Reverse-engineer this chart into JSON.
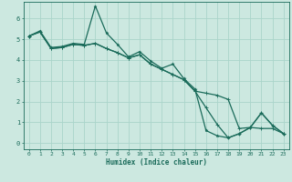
{
  "xlabel": "Humidex (Indice chaleur)",
  "xlim": [
    -0.5,
    23.5
  ],
  "ylim": [
    -0.3,
    6.8
  ],
  "background_color": "#cce8e0",
  "grid_color": "#aad4ca",
  "line_color": "#1a6b5a",
  "xticks": [
    0,
    1,
    2,
    3,
    4,
    5,
    6,
    7,
    8,
    9,
    10,
    11,
    12,
    13,
    14,
    15,
    16,
    17,
    18,
    19,
    20,
    21,
    22,
    23
  ],
  "yticks": [
    0,
    1,
    2,
    3,
    4,
    5,
    6
  ],
  "line1_x": [
    0,
    1,
    2,
    3,
    4,
    5,
    6,
    7,
    8,
    9,
    10,
    11,
    12,
    13,
    14,
    15,
    16,
    17,
    18,
    19,
    20,
    21,
    22,
    23
  ],
  "line1_y": [
    5.15,
    5.4,
    4.6,
    4.65,
    4.8,
    4.75,
    6.6,
    5.3,
    4.75,
    4.15,
    4.4,
    3.95,
    3.6,
    3.8,
    3.1,
    2.6,
    0.6,
    0.35,
    0.25,
    0.45,
    0.75,
    1.45,
    0.85,
    0.45
  ],
  "line2_x": [
    0,
    1,
    2,
    3,
    4,
    5,
    6,
    7,
    8,
    9,
    10,
    11,
    12,
    13,
    14,
    15,
    16,
    17,
    18,
    19,
    20,
    21,
    22,
    23
  ],
  "line2_y": [
    5.15,
    5.35,
    4.55,
    4.6,
    4.75,
    4.7,
    4.8,
    4.55,
    4.35,
    4.1,
    4.25,
    3.8,
    3.55,
    3.3,
    3.05,
    2.5,
    2.4,
    2.3,
    2.1,
    0.7,
    0.75,
    0.7,
    0.7,
    0.45
  ],
  "line3_x": [
    0,
    1,
    2,
    3,
    4,
    5,
    6,
    7,
    8,
    9,
    10,
    11,
    12,
    13,
    14,
    15,
    16,
    17,
    18,
    19,
    20,
    21,
    22,
    23
  ],
  "line3_y": [
    5.15,
    5.35,
    4.55,
    4.6,
    4.75,
    4.7,
    4.8,
    4.55,
    4.35,
    4.1,
    4.25,
    3.8,
    3.55,
    3.3,
    3.05,
    2.5,
    1.7,
    0.9,
    0.25,
    0.45,
    0.75,
    1.45,
    0.85,
    0.45
  ],
  "tick_fontsize": 4.5,
  "xlabel_fontsize": 5.5
}
